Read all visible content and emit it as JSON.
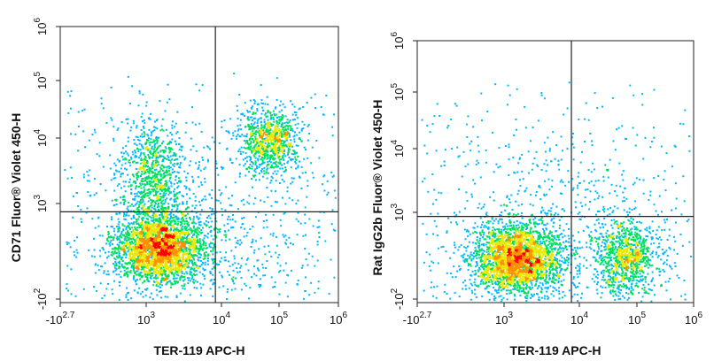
{
  "chart_data": [
    {
      "type": "scatter",
      "style": "flow-cytometry density dot plot",
      "xlabel": "TER-119 APC-H",
      "ylabel": "CD71 Fluor® Violet 450-H",
      "x_scale": "biexponential",
      "y_scale": "biexponential",
      "xlim": [
        -500,
        1000000
      ],
      "ylim": [
        -100,
        1000000
      ],
      "x_ticks": [
        {
          "label": "-10",
          "exp": "2.7"
        },
        {
          "label": "10",
          "exp": "3"
        },
        {
          "label": "10",
          "exp": "4"
        },
        {
          "label": "10",
          "exp": "5"
        },
        {
          "label": "10",
          "exp": "6"
        }
      ],
      "y_ticks": [
        {
          "label": "-10",
          "exp": "2"
        },
        {
          "label": "10",
          "exp": "3"
        },
        {
          "label": "10",
          "exp": "4"
        },
        {
          "label": "10",
          "exp": "5"
        },
        {
          "label": "10",
          "exp": "6"
        }
      ],
      "quadrant_gate": {
        "x": 5000,
        "y": 700
      },
      "populations": [
        {
          "x": 400,
          "y": 130,
          "density": "very high"
        },
        {
          "x": 280,
          "y": 3000,
          "density": "medium"
        },
        {
          "x": 50000,
          "y": 12000,
          "density": "medium"
        },
        {
          "x": 4000,
          "y": 200,
          "density": "low"
        }
      ],
      "density_colors": [
        "#1010ff",
        "#00b8ff",
        "#00e060",
        "#e8e800",
        "#ff9000",
        "#ff0000"
      ]
    },
    {
      "type": "scatter",
      "style": "flow-cytometry density dot plot",
      "xlabel": "TER-119 APC-H",
      "ylabel": "Rat IgG2b Fluor® Violet 450-H",
      "x_scale": "biexponential",
      "y_scale": "biexponential",
      "xlim": [
        -500,
        1000000
      ],
      "ylim": [
        -100,
        1000000
      ],
      "x_ticks": [
        {
          "label": "-10",
          "exp": "2.7"
        },
        {
          "label": "10",
          "exp": "3"
        },
        {
          "label": "10",
          "exp": "4"
        },
        {
          "label": "10",
          "exp": "5"
        },
        {
          "label": "10",
          "exp": "6"
        }
      ],
      "y_ticks": [
        {
          "label": "-10",
          "exp": "2"
        },
        {
          "label": "10",
          "exp": "3"
        },
        {
          "label": "10",
          "exp": "4"
        },
        {
          "label": "10",
          "exp": "5"
        },
        {
          "label": "10",
          "exp": "6"
        }
      ],
      "quadrant_gate": {
        "x": 5000,
        "y": 700
      },
      "populations": [
        {
          "x": 400,
          "y": 80,
          "density": "very high"
        },
        {
          "x": 50000,
          "y": 80,
          "density": "medium"
        },
        {
          "x": 3000,
          "y": 1200,
          "density": "low"
        }
      ],
      "density_colors": [
        "#1010ff",
        "#00b8ff",
        "#00e060",
        "#e8e800",
        "#ff9000",
        "#ff0000"
      ]
    }
  ]
}
